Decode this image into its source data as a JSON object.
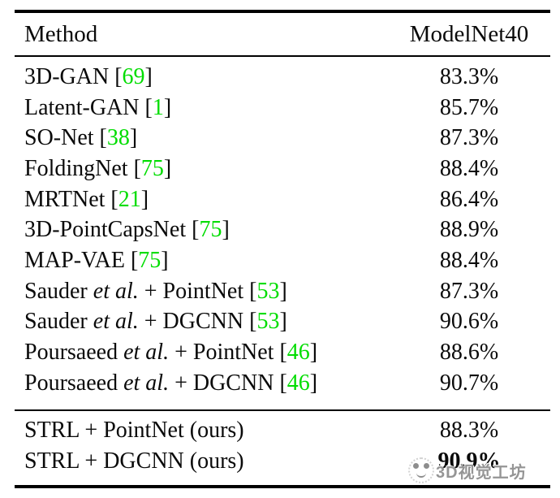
{
  "table": {
    "columns": [
      "Method",
      "ModelNet40"
    ],
    "citation_brackets": {
      "open": "[",
      "close": "]"
    },
    "rows": [
      {
        "pre": "3D-GAN ",
        "etal": "",
        "post": " ",
        "cite": "69",
        "value": "83.3%"
      },
      {
        "pre": "Latent-GAN ",
        "etal": "",
        "post": " ",
        "cite": "1",
        "value": "85.7%"
      },
      {
        "pre": "SO-Net ",
        "etal": "",
        "post": " ",
        "cite": "38",
        "value": "87.3%"
      },
      {
        "pre": "FoldingNet ",
        "etal": "",
        "post": " ",
        "cite": "75",
        "value": "88.4%"
      },
      {
        "pre": "MRTNet ",
        "etal": "",
        "post": " ",
        "cite": "21",
        "value": "86.4%"
      },
      {
        "pre": "3D-PointCapsNet ",
        "etal": "",
        "post": " ",
        "cite": "75",
        "value": "88.9%"
      },
      {
        "pre": "MAP-VAE ",
        "etal": "",
        "post": " ",
        "cite": "75",
        "value": "88.4%"
      },
      {
        "pre": "Sauder ",
        "etal": "et al.",
        "post": " + PointNet ",
        "cite": "53",
        "value": "87.3%"
      },
      {
        "pre": "Sauder ",
        "etal": "et al.",
        "post": " + DGCNN ",
        "cite": "53",
        "value": "90.6%"
      },
      {
        "pre": "Poursaeed ",
        "etal": "et al.",
        "post": " + PointNet ",
        "cite": "46",
        "value": "88.6%"
      },
      {
        "pre": "Poursaeed ",
        "etal": "et al.",
        "post": " + DGCNN ",
        "cite": "46",
        "value": "90.7%"
      }
    ],
    "ours_rows": [
      {
        "pre": "STRL + PointNet (ours)",
        "etal": "",
        "post": "",
        "cite": "",
        "value": "88.3%",
        "bold": false
      },
      {
        "pre": "STRL + DGCNN (ours)",
        "etal": "",
        "post": "",
        "cite": "",
        "value": "90.9%",
        "bold": true
      }
    ]
  },
  "watermark": {
    "text": "3D视觉工坊",
    "logo": "panda-logo"
  },
  "colors": {
    "citation_green": "#00DD00",
    "text_black": "#0a0a0a",
    "watermark_gray": "#8a8a8a",
    "rule_black": "#000000"
  }
}
